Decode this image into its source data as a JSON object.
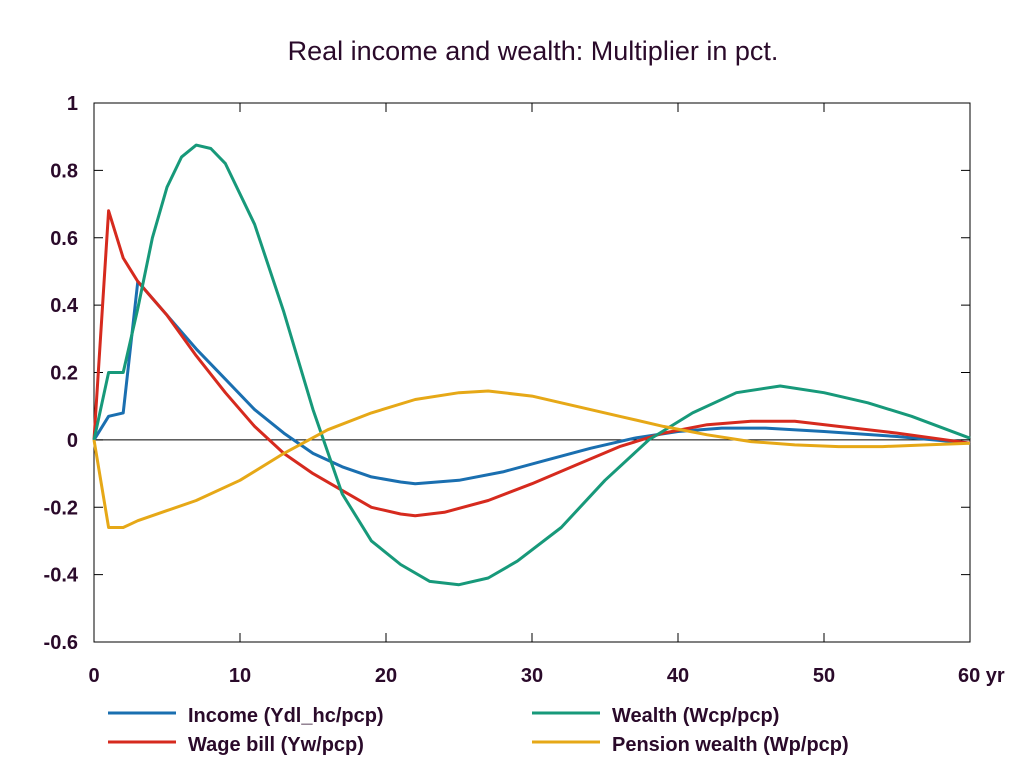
{
  "chart_data": {
    "type": "line",
    "title": "Real income and wealth: Multiplier in pct.",
    "xlabel": "",
    "ylabel": "",
    "x_unit": "yr",
    "xlim": [
      0,
      60
    ],
    "ylim": [
      -0.6,
      1
    ],
    "x_ticks": [
      0,
      10,
      20,
      30,
      40,
      50,
      60
    ],
    "x_tick_labels": [
      "0",
      "10",
      "20",
      "30",
      "40",
      "50",
      "60 yr"
    ],
    "y_ticks": [
      -0.6,
      -0.4,
      -0.2,
      0,
      0.2,
      0.4,
      0.6,
      0.8,
      1
    ],
    "y_tick_labels": [
      "-0.6",
      "-0.4",
      "-0.2",
      "0",
      "0.2",
      "0.4",
      "0.6",
      "0.8",
      "1"
    ],
    "grid": false,
    "zero_line": true,
    "legend_position": "bottom",
    "series": [
      {
        "name": "Income (Ydl_hc/pcp)",
        "color": "#1a6fb0",
        "points": [
          [
            0,
            0
          ],
          [
            1,
            0.07
          ],
          [
            2,
            0.08
          ],
          [
            3,
            0.47
          ],
          [
            4,
            0.42
          ],
          [
            5,
            0.37
          ],
          [
            7,
            0.27
          ],
          [
            9,
            0.18
          ],
          [
            11,
            0.09
          ],
          [
            13,
            0.02
          ],
          [
            15,
            -0.04
          ],
          [
            17,
            -0.08
          ],
          [
            19,
            -0.11
          ],
          [
            21,
            -0.125
          ],
          [
            22,
            -0.13
          ],
          [
            25,
            -0.12
          ],
          [
            28,
            -0.095
          ],
          [
            31,
            -0.06
          ],
          [
            34,
            -0.025
          ],
          [
            37,
            0.005
          ],
          [
            40,
            0.025
          ],
          [
            43,
            0.035
          ],
          [
            46,
            0.035
          ],
          [
            50,
            0.025
          ],
          [
            55,
            0.01
          ],
          [
            60,
            -0.01
          ]
        ]
      },
      {
        "name": "Wage bill (Yw/pcp)",
        "color": "#d62a1e",
        "points": [
          [
            0,
            0
          ],
          [
            1,
            0.68
          ],
          [
            2,
            0.54
          ],
          [
            3,
            0.47
          ],
          [
            5,
            0.37
          ],
          [
            7,
            0.25
          ],
          [
            9,
            0.14
          ],
          [
            11,
            0.04
          ],
          [
            13,
            -0.04
          ],
          [
            15,
            -0.1
          ],
          [
            17,
            -0.15
          ],
          [
            19,
            -0.2
          ],
          [
            21,
            -0.22
          ],
          [
            22,
            -0.225
          ],
          [
            24,
            -0.215
          ],
          [
            27,
            -0.18
          ],
          [
            30,
            -0.13
          ],
          [
            33,
            -0.075
          ],
          [
            36,
            -0.02
          ],
          [
            39,
            0.02
          ],
          [
            42,
            0.045
          ],
          [
            45,
            0.055
          ],
          [
            48,
            0.055
          ],
          [
            51,
            0.04
          ],
          [
            55,
            0.02
          ],
          [
            60,
            -0.01
          ]
        ]
      },
      {
        "name": "Wealth (Wcp/pcp)",
        "color": "#17997a",
        "points": [
          [
            0,
            0
          ],
          [
            1,
            0.2
          ],
          [
            2,
            0.2
          ],
          [
            3,
            0.39
          ],
          [
            4,
            0.6
          ],
          [
            5,
            0.75
          ],
          [
            6,
            0.84
          ],
          [
            7,
            0.875
          ],
          [
            8,
            0.865
          ],
          [
            9,
            0.82
          ],
          [
            11,
            0.64
          ],
          [
            13,
            0.38
          ],
          [
            15,
            0.09
          ],
          [
            17,
            -0.16
          ],
          [
            19,
            -0.3
          ],
          [
            21,
            -0.37
          ],
          [
            23,
            -0.42
          ],
          [
            25,
            -0.43
          ],
          [
            27,
            -0.41
          ],
          [
            29,
            -0.36
          ],
          [
            32,
            -0.26
          ],
          [
            35,
            -0.12
          ],
          [
            38,
            0.0
          ],
          [
            41,
            0.08
          ],
          [
            44,
            0.14
          ],
          [
            47,
            0.16
          ],
          [
            50,
            0.14
          ],
          [
            53,
            0.11
          ],
          [
            56,
            0.07
          ],
          [
            60,
            0.005
          ]
        ]
      },
      {
        "name": "Pension wealth (Wp/pcp)",
        "color": "#e6a817",
        "points": [
          [
            0,
            0
          ],
          [
            1,
            -0.26
          ],
          [
            2,
            -0.26
          ],
          [
            3,
            -0.24
          ],
          [
            5,
            -0.21
          ],
          [
            7,
            -0.18
          ],
          [
            10,
            -0.12
          ],
          [
            13,
            -0.04
          ],
          [
            16,
            0.03
          ],
          [
            19,
            0.08
          ],
          [
            22,
            0.12
          ],
          [
            25,
            0.14
          ],
          [
            27,
            0.145
          ],
          [
            30,
            0.13
          ],
          [
            33,
            0.1
          ],
          [
            36,
            0.07
          ],
          [
            39,
            0.04
          ],
          [
            42,
            0.015
          ],
          [
            45,
            -0.005
          ],
          [
            48,
            -0.015
          ],
          [
            51,
            -0.02
          ],
          [
            54,
            -0.02
          ],
          [
            57,
            -0.015
          ],
          [
            60,
            -0.01
          ]
        ]
      }
    ]
  }
}
